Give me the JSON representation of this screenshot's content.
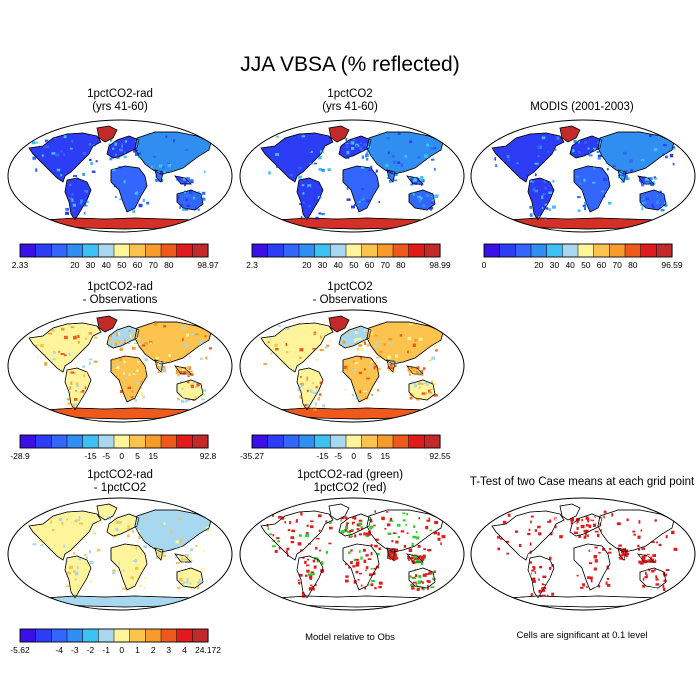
{
  "title": "JJA VBSA (% reflected)",
  "panels": [
    {
      "line1": "1pctCO2-rad",
      "line2": "(yrs 41-60)",
      "style": "abs"
    },
    {
      "line1": "1pctCO2",
      "line2": "(yrs 41-60)",
      "style": "abs"
    },
    {
      "line1": "MODIS (2001-2003)",
      "line2": "",
      "style": "abs"
    },
    {
      "line1": "1pctCO2-rad",
      "line2": "- Observations",
      "style": "diff"
    },
    {
      "line1": "1pctCO2",
      "line2": "- Observations",
      "style": "diff"
    },
    {
      "line1": "1pctCO2-rad",
      "line2": "- 1pctCO2",
      "style": "diff2"
    },
    {
      "line1": "1pctCO2-rad (green)",
      "line2": "1pctCO2 (red)",
      "style": "compare"
    },
    {
      "line1": "T-Test of two Case means at each grid point",
      "line2": "",
      "style": "ttest"
    }
  ],
  "notes": {
    "compare": "Model relative to Obs",
    "ttest": "Cells are significant at 0.1 level"
  },
  "chart_data": [
    {
      "type": "heatmap",
      "title": "1pctCO2-rad (yrs 41-60)",
      "colorbar": {
        "min": "2.33",
        "max": "98.97",
        "ticks": [
          "20",
          "30",
          "40",
          "50",
          "60",
          "70",
          "80"
        ],
        "colors": [
          "#3a10e6",
          "#2d3cf5",
          "#3366ff",
          "#2f8ef0",
          "#3dc1f2",
          "#a7d8f0",
          "#fef49c",
          "#fcc34f",
          "#f79c2c",
          "#ef5a1c",
          "#e31a1c",
          "#c22a2a"
        ]
      }
    },
    {
      "type": "heatmap",
      "title": "1pctCO2 (yrs 41-60)",
      "colorbar": {
        "min": "2.3",
        "max": "98.99",
        "ticks": [
          "20",
          "30",
          "40",
          "50",
          "60",
          "70",
          "80"
        ],
        "colors": [
          "#3a10e6",
          "#2d3cf5",
          "#3366ff",
          "#2f8ef0",
          "#3dc1f2",
          "#a7d8f0",
          "#fef49c",
          "#fcc34f",
          "#f79c2c",
          "#ef5a1c",
          "#e31a1c",
          "#c22a2a"
        ]
      }
    },
    {
      "type": "heatmap",
      "title": "MODIS (2001-2003)",
      "colorbar": {
        "min": "0",
        "max": "96.59",
        "ticks": [
          "20",
          "30",
          "40",
          "50",
          "60",
          "70",
          "80"
        ],
        "colors": [
          "#3a10e6",
          "#2d3cf5",
          "#3366ff",
          "#2f8ef0",
          "#3dc1f2",
          "#a7d8f0",
          "#fef49c",
          "#fcc34f",
          "#f79c2c",
          "#ef5a1c",
          "#e31a1c",
          "#c22a2a"
        ]
      }
    },
    {
      "type": "heatmap",
      "title": "1pctCO2-rad - Observations",
      "colorbar": {
        "min": "-28.9",
        "max": "92.8",
        "ticks": [
          "-15",
          "-5",
          "0",
          "5",
          "15"
        ],
        "colors": [
          "#3a10e6",
          "#2d3cf5",
          "#3366ff",
          "#2f8ef0",
          "#3dc1f2",
          "#a7d8f0",
          "#fef49c",
          "#fcc34f",
          "#f79c2c",
          "#ef5a1c",
          "#e31a1c",
          "#c22a2a"
        ]
      }
    },
    {
      "type": "heatmap",
      "title": "1pctCO2 - Observations",
      "colorbar": {
        "min": "-35.27",
        "max": "92.55",
        "ticks": [
          "-15",
          "-5",
          "0",
          "5",
          "15"
        ],
        "colors": [
          "#3a10e6",
          "#2d3cf5",
          "#3366ff",
          "#2f8ef0",
          "#3dc1f2",
          "#a7d8f0",
          "#fef49c",
          "#fcc34f",
          "#f79c2c",
          "#ef5a1c",
          "#e31a1c",
          "#c22a2a"
        ]
      }
    },
    {
      "type": "heatmap",
      "title": "1pctCO2-rad - 1pctCO2",
      "colorbar": {
        "min": "-5.62",
        "max": "24.172",
        "ticks": [
          "-4",
          "-3",
          "-2",
          "-1",
          "0",
          "1",
          "2",
          "3",
          "4"
        ],
        "colors": [
          "#3a10e6",
          "#2d3cf5",
          "#3366ff",
          "#2f8ef0",
          "#3dc1f2",
          "#a7d8f0",
          "#fef49c",
          "#fcc34f",
          "#f79c2c",
          "#ef5a1c",
          "#e31a1c",
          "#c22a2a"
        ]
      }
    }
  ]
}
